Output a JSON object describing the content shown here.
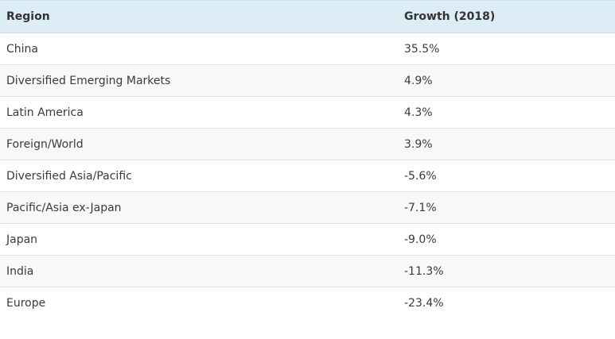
{
  "table": {
    "headers": [
      "Region",
      "Growth (2018)"
    ],
    "rows": [
      [
        "China",
        "35.5%"
      ],
      [
        "Diversified Emerging Markets",
        "4.9%"
      ],
      [
        "Latin America",
        "4.3%"
      ],
      [
        "Foreign/World",
        "3.9%"
      ],
      [
        "Diversified Asia/Pacific",
        "-5.6%"
      ],
      [
        "Pacific/Asia ex-Japan",
        "-7.1%"
      ],
      [
        "Japan",
        "-9.0%"
      ],
      [
        "India",
        "-11.3%"
      ],
      [
        "Europe",
        "-23.4%"
      ]
    ]
  },
  "colors": {
    "header_background": "#ddedf6",
    "row_alt_background": "#f8f8f8",
    "row_divider": "#e2e2e2"
  }
}
